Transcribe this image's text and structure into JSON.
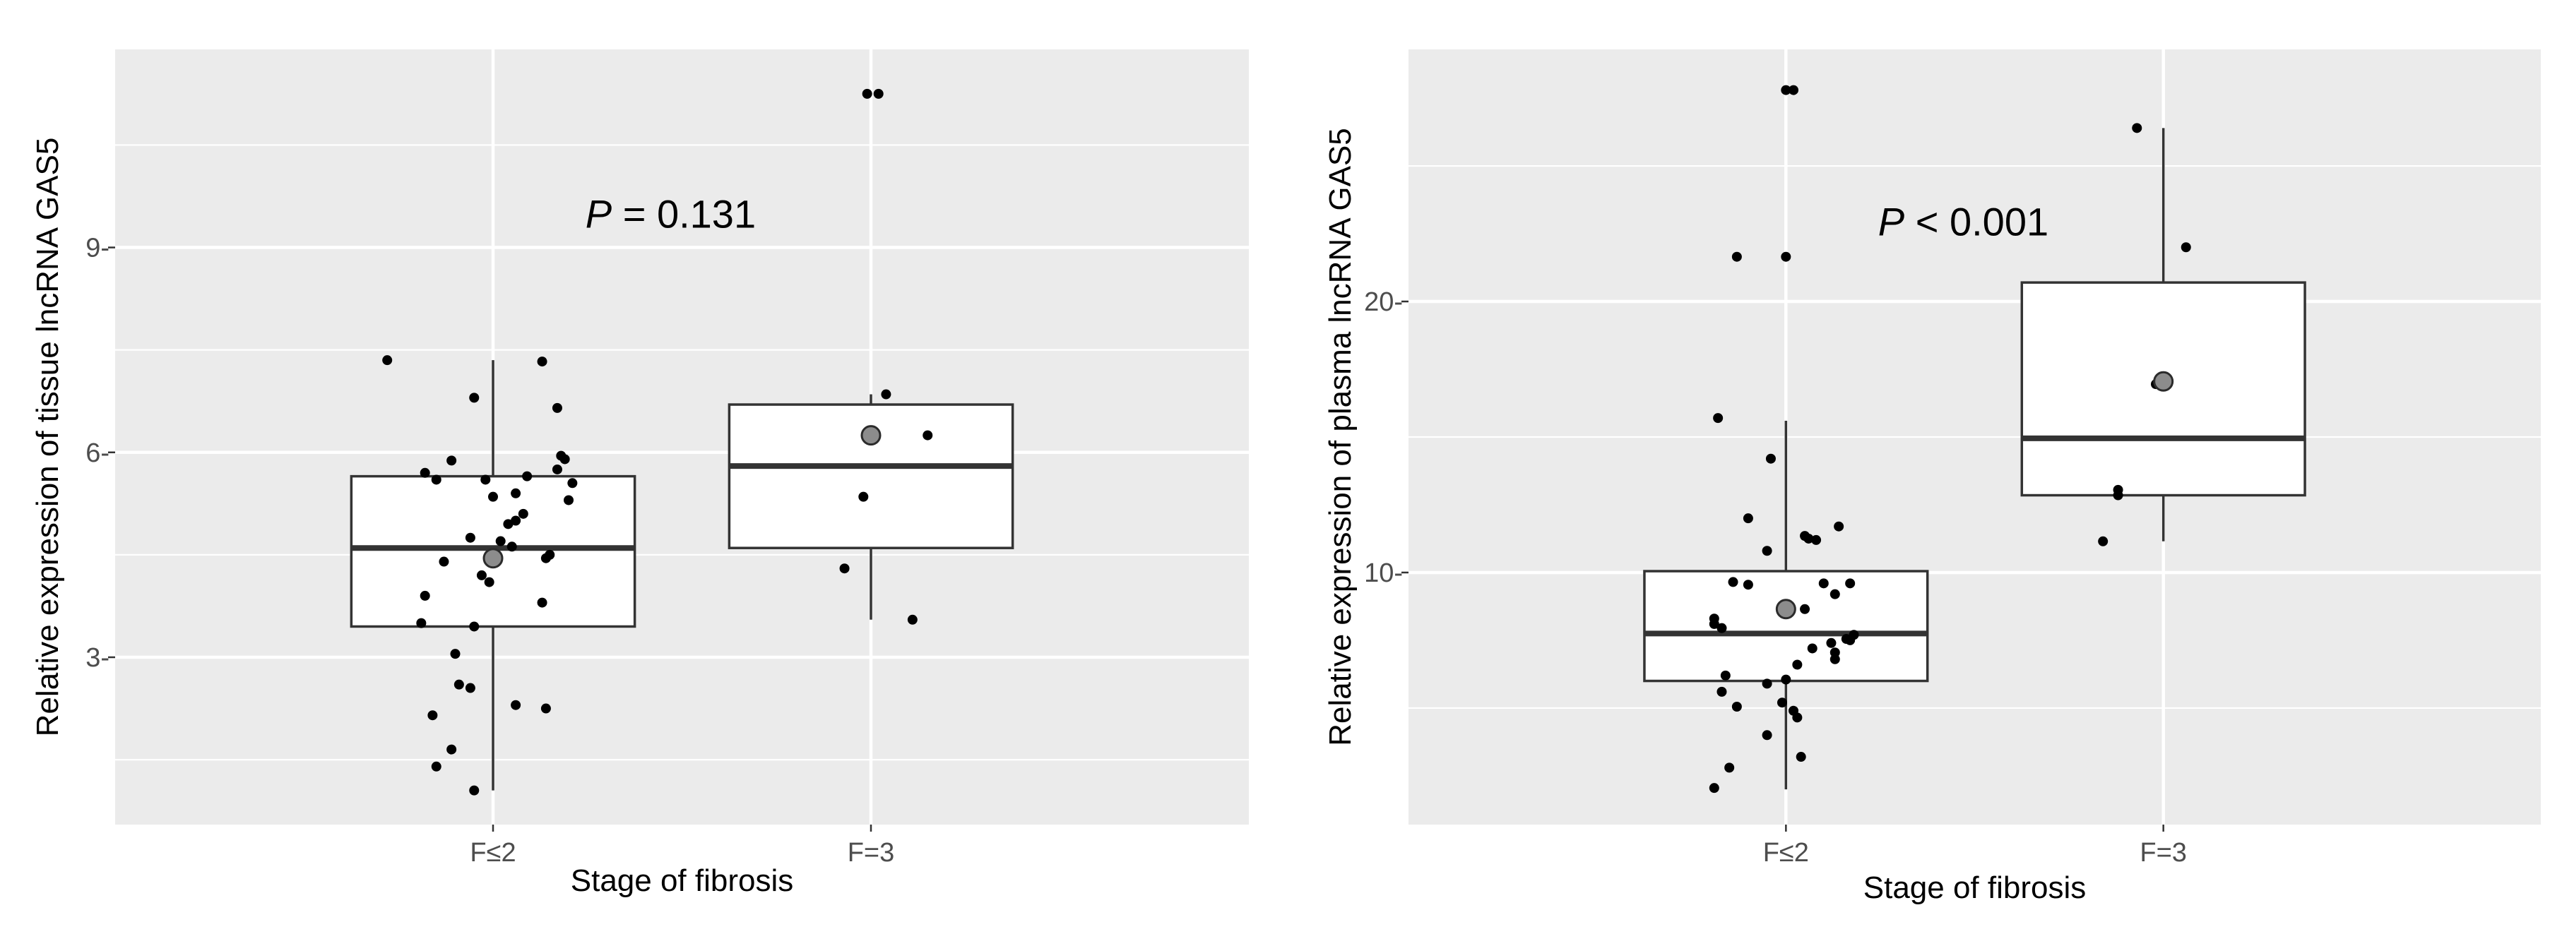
{
  "chart_data": [
    {
      "type": "box",
      "xlabel": "Stage of fibrosis",
      "ylabel": "Relative expression of tissue lncRNA GAS5",
      "categories": [
        "F≤2",
        "F=3"
      ],
      "yticks": [
        3,
        6,
        9
      ],
      "yticklabels": [
        "3-",
        "6-",
        "9-"
      ],
      "ylim": [
        0.55,
        11.9
      ],
      "grid": true,
      "annotation": {
        "italic": "P",
        "text": " = 0.131"
      },
      "boxes": [
        {
          "category": "F≤2",
          "q1": 3.45,
          "median": 4.6,
          "q3": 5.65,
          "whisker_low": 1.05,
          "whisker_high": 7.35,
          "mean": 4.45
        },
        {
          "category": "F=3",
          "q1": 4.6,
          "median": 5.8,
          "q3": 6.7,
          "whisker_low": 3.55,
          "whisker_high": 6.85,
          "mean": 6.25
        }
      ],
      "points": [
        {
          "category": "F≤2",
          "values": [
            7.35,
            7.33,
            6.8,
            6.65,
            5.95,
            5.9,
            5.88,
            5.75,
            5.7,
            5.65,
            5.6,
            5.6,
            5.55,
            5.4,
            5.35,
            5.3,
            5.1,
            5.0,
            4.95,
            4.75,
            4.7,
            4.62,
            4.5,
            4.45,
            4.4,
            4.2,
            4.1,
            3.9,
            3.8,
            3.5,
            3.45,
            3.05,
            2.6,
            2.55,
            2.3,
            2.25,
            2.15,
            1.65,
            1.4,
            1.05
          ],
          "jitter": [
            -0.28,
            0.13,
            -0.05,
            0.17,
            0.18,
            0.19,
            -0.11,
            0.17,
            -0.18,
            0.09,
            -0.15,
            -0.02,
            0.21,
            0.06,
            0.0,
            0.2,
            0.08,
            0.06,
            0.04,
            -0.06,
            0.02,
            0.05,
            0.15,
            0.14,
            -0.13,
            -0.03,
            -0.01,
            -0.18,
            0.13,
            -0.19,
            -0.05,
            -0.1,
            -0.09,
            -0.06,
            0.06,
            0.14,
            -0.16,
            -0.11,
            -0.15,
            -0.05
          ]
        },
        {
          "category": "F=3",
          "values": [
            11.25,
            11.25,
            6.85,
            6.25,
            5.35,
            4.3,
            3.55
          ],
          "jitter": [
            -0.01,
            0.02,
            0.04,
            0.15,
            -0.02,
            -0.07,
            0.11
          ]
        }
      ]
    },
    {
      "type": "box",
      "xlabel": "Stage of fibrosis",
      "ylabel": "Relative expression of plasma lncRNA GAS5",
      "categories": [
        "F≤2",
        "F=3"
      ],
      "yticks": [
        10,
        20
      ],
      "yticklabels": [
        "10-",
        "20-"
      ],
      "ylim": [
        0.7,
        29.3
      ],
      "grid": true,
      "annotation": {
        "italic": "P",
        "text": " < 0.001"
      },
      "boxes": [
        {
          "category": "F≤2",
          "q1": 6.0,
          "median": 7.75,
          "q3": 10.05,
          "whisker_low": 2.0,
          "whisker_high": 15.6,
          "mean": 8.65
        },
        {
          "category": "F=3",
          "q1": 12.85,
          "median": 14.95,
          "q3": 20.7,
          "whisker_low": 11.15,
          "whisker_high": 26.4,
          "mean": 17.05
        }
      ],
      "points": [
        {
          "category": "F≤2",
          "values": [
            27.8,
            27.8,
            21.65,
            21.65,
            15.7,
            14.2,
            12.0,
            11.7,
            11.35,
            11.25,
            11.2,
            10.8,
            9.65,
            9.6,
            9.6,
            9.55,
            9.2,
            8.65,
            8.3,
            8.1,
            7.95,
            7.7,
            7.55,
            7.5,
            7.4,
            7.2,
            7.05,
            6.8,
            6.6,
            6.2,
            6.05,
            5.9,
            5.6,
            5.2,
            5.05,
            4.9,
            4.65,
            4.0,
            3.2,
            2.8,
            2.05
          ],
          "jitter": [
            0.0,
            0.02,
            -0.13,
            0.0,
            -0.18,
            -0.04,
            -0.1,
            0.14,
            0.05,
            0.06,
            0.08,
            -0.05,
            -0.14,
            0.1,
            0.17,
            -0.1,
            0.13,
            0.05,
            -0.19,
            -0.19,
            -0.17,
            0.18,
            0.16,
            0.17,
            0.12,
            0.07,
            0.13,
            0.13,
            0.03,
            -0.16,
            0.0,
            -0.05,
            -0.17,
            -0.01,
            -0.13,
            0.02,
            0.03,
            -0.05,
            0.04,
            -0.15,
            -0.19
          ]
        },
        {
          "category": "F=3",
          "values": [
            26.4,
            22.0,
            16.95,
            13.05,
            12.85,
            11.15
          ],
          "jitter": [
            -0.07,
            0.06,
            -0.02,
            -0.12,
            -0.12,
            -0.16
          ]
        }
      ]
    }
  ]
}
